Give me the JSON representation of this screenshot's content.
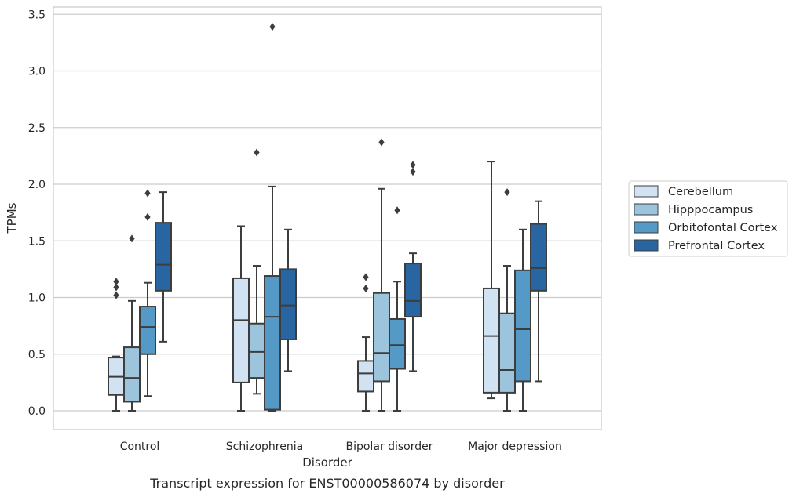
{
  "chart_data": {
    "type": "box",
    "title": "",
    "caption": "Transcript expression for ENST00000586074 by disorder",
    "xlabel": "Disorder",
    "ylabel": "TPMs",
    "ylim": [
      -0.16,
      3.56
    ],
    "yticks": [
      "0.0",
      "0.5",
      "1.0",
      "1.5",
      "2.0",
      "2.5",
      "3.0",
      "3.5"
    ],
    "categories": [
      "Control",
      "Schizophrenia",
      "Bipolar disorder",
      "Major depression"
    ],
    "grid": true,
    "legend_position": "right",
    "series": [
      {
        "name": "Cerebellum",
        "color": "#d1e2f2",
        "boxes": [
          {
            "whislo": 0.0,
            "q1": 0.14,
            "med": 0.3,
            "q3": 0.47,
            "whishi": 0.48,
            "fliers": [
              1.02,
              1.09,
              1.14
            ]
          },
          {
            "whislo": 0.0,
            "q1": 0.25,
            "med": 0.8,
            "q3": 1.17,
            "whishi": 1.63,
            "fliers": []
          },
          {
            "whislo": 0.0,
            "q1": 0.17,
            "med": 0.33,
            "q3": 0.44,
            "whishi": 0.65,
            "fliers": [
              1.08,
              1.18
            ]
          },
          {
            "whislo": 0.11,
            "q1": 0.16,
            "med": 0.66,
            "q3": 1.08,
            "whishi": 2.2,
            "fliers": []
          }
        ]
      },
      {
        "name": "Hipppocampus",
        "color": "#9cc5dd",
        "boxes": [
          {
            "whislo": 0.0,
            "q1": 0.08,
            "med": 0.29,
            "q3": 0.56,
            "whishi": 0.97,
            "fliers": [
              1.52
            ]
          },
          {
            "whislo": 0.15,
            "q1": 0.29,
            "med": 0.52,
            "q3": 0.77,
            "whishi": 1.28,
            "fliers": [
              2.28
            ]
          },
          {
            "whislo": 0.0,
            "q1": 0.26,
            "med": 0.51,
            "q3": 1.04,
            "whishi": 1.96,
            "fliers": [
              2.37
            ]
          },
          {
            "whislo": 0.0,
            "q1": 0.16,
            "med": 0.36,
            "q3": 0.86,
            "whishi": 1.28,
            "fliers": [
              1.93
            ]
          }
        ]
      },
      {
        "name": "Orbitofontal Cortex",
        "color": "#5599c7",
        "boxes": [
          {
            "whislo": 0.13,
            "q1": 0.5,
            "med": 0.74,
            "q3": 0.92,
            "whishi": 1.13,
            "fliers": [
              1.71,
              1.92
            ]
          },
          {
            "whislo": 0.0,
            "q1": 0.01,
            "med": 0.83,
            "q3": 1.19,
            "whishi": 1.98,
            "fliers": [
              3.39
            ]
          },
          {
            "whislo": 0.0,
            "q1": 0.37,
            "med": 0.58,
            "q3": 0.81,
            "whishi": 1.14,
            "fliers": [
              1.77
            ]
          },
          {
            "whislo": 0.0,
            "q1": 0.26,
            "med": 0.72,
            "q3": 1.24,
            "whishi": 1.6,
            "fliers": []
          }
        ]
      },
      {
        "name": "Prefrontal Cortex",
        "color": "#2965a1",
        "boxes": [
          {
            "whislo": 0.61,
            "q1": 1.06,
            "med": 1.29,
            "q3": 1.66,
            "whishi": 1.93,
            "fliers": []
          },
          {
            "whislo": 0.35,
            "q1": 0.63,
            "med": 0.93,
            "q3": 1.25,
            "whishi": 1.6,
            "fliers": []
          },
          {
            "whislo": 0.35,
            "q1": 0.83,
            "med": 0.97,
            "q3": 1.3,
            "whishi": 1.39,
            "fliers": [
              2.11,
              2.17
            ]
          },
          {
            "whislo": 0.26,
            "q1": 1.06,
            "med": 1.26,
            "q3": 1.65,
            "whishi": 1.85,
            "fliers": []
          }
        ]
      }
    ]
  }
}
